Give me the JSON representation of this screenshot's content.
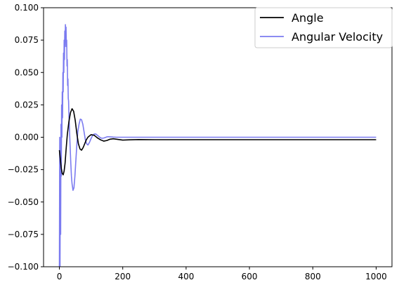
{
  "chart_data": {
    "type": "line",
    "xlim": [
      -50,
      1050
    ],
    "ylim": [
      -0.1,
      0.1
    ],
    "x_ticks": [
      0,
      200,
      400,
      600,
      800,
      1000
    ],
    "x_tick_labels": [
      "0",
      "200",
      "400",
      "600",
      "800",
      "1000"
    ],
    "y_ticks": [
      -0.1,
      -0.075,
      -0.05,
      -0.025,
      0.0,
      0.025,
      0.05,
      0.075,
      0.1
    ],
    "y_tick_labels": [
      "−0.100",
      "−0.075",
      "−0.050",
      "−0.025",
      "0.000",
      "0.025",
      "0.050",
      "0.075",
      "0.100"
    ],
    "grid": false,
    "legend_position": "top-right",
    "series": [
      {
        "name": "Angle",
        "color": "#000000",
        "x": [
          0,
          3,
          6,
          9,
          12,
          15,
          18,
          21,
          25,
          30,
          35,
          40,
          45,
          50,
          55,
          60,
          65,
          70,
          75,
          80,
          85,
          90,
          95,
          100,
          110,
          120,
          130,
          140,
          150,
          160,
          170,
          180,
          200,
          220,
          250,
          300,
          400,
          500,
          600,
          800,
          1000
        ],
        "y": [
          -0.01,
          -0.017,
          -0.024,
          -0.028,
          -0.029,
          -0.026,
          -0.02,
          -0.01,
          0.002,
          0.012,
          0.019,
          0.022,
          0.02,
          0.013,
          0.003,
          -0.005,
          -0.009,
          -0.01,
          -0.008,
          -0.005,
          -0.002,
          0.0,
          0.001,
          0.002,
          0.0015,
          -0.0005,
          -0.002,
          -0.003,
          -0.0025,
          -0.0015,
          -0.0012,
          -0.0015,
          -0.0022,
          -0.002,
          -0.0018,
          -0.0019,
          -0.0019,
          -0.0019,
          -0.0019,
          -0.0019,
          -0.0019
        ]
      },
      {
        "name": "Angular Velocity",
        "color": "#7b7bf0",
        "x": [
          0,
          1,
          2,
          3,
          4,
          5,
          6,
          7,
          8,
          9,
          10,
          11,
          12,
          13,
          14,
          15,
          16,
          17,
          18,
          19,
          20,
          21,
          22,
          23,
          24,
          25,
          26,
          27,
          28,
          29,
          30,
          32,
          34,
          36,
          38,
          40,
          43,
          46,
          49,
          52,
          55,
          58,
          62,
          66,
          70,
          74,
          78,
          82,
          86,
          90,
          95,
          100,
          105,
          110,
          115,
          120,
          125,
          130,
          135,
          140,
          145,
          150,
          155,
          160,
          170,
          180,
          190,
          200,
          210,
          220,
          240,
          260,
          280,
          300,
          400,
          500,
          600,
          800,
          1000
        ],
        "y": [
          -0.1,
          0.0,
          -0.1,
          -0.02,
          -0.075,
          0.01,
          -0.03,
          0.025,
          0.0,
          0.035,
          0.015,
          0.05,
          0.035,
          0.065,
          0.05,
          0.075,
          0.06,
          0.082,
          0.07,
          0.087,
          0.075,
          0.085,
          0.07,
          0.075,
          0.055,
          0.06,
          0.04,
          0.045,
          0.03,
          0.028,
          0.018,
          0.005,
          -0.008,
          -0.02,
          -0.03,
          -0.036,
          -0.041,
          -0.039,
          -0.03,
          -0.018,
          -0.006,
          0.004,
          0.01,
          0.014,
          0.0135,
          0.01,
          0.004,
          -0.002,
          -0.005,
          -0.006,
          -0.004,
          -0.001,
          0.0015,
          0.0025,
          0.0025,
          0.0015,
          0.0005,
          -0.0005,
          -0.0008,
          -0.0006,
          -0.0002,
          0.0003,
          0.0004,
          0.0003,
          0.0001,
          0.0,
          0.0,
          0.0,
          0.0,
          0.0,
          0.0,
          0.0,
          0.0,
          0.0,
          0.0,
          0.0,
          0.0,
          0.0,
          0.0
        ]
      }
    ]
  }
}
